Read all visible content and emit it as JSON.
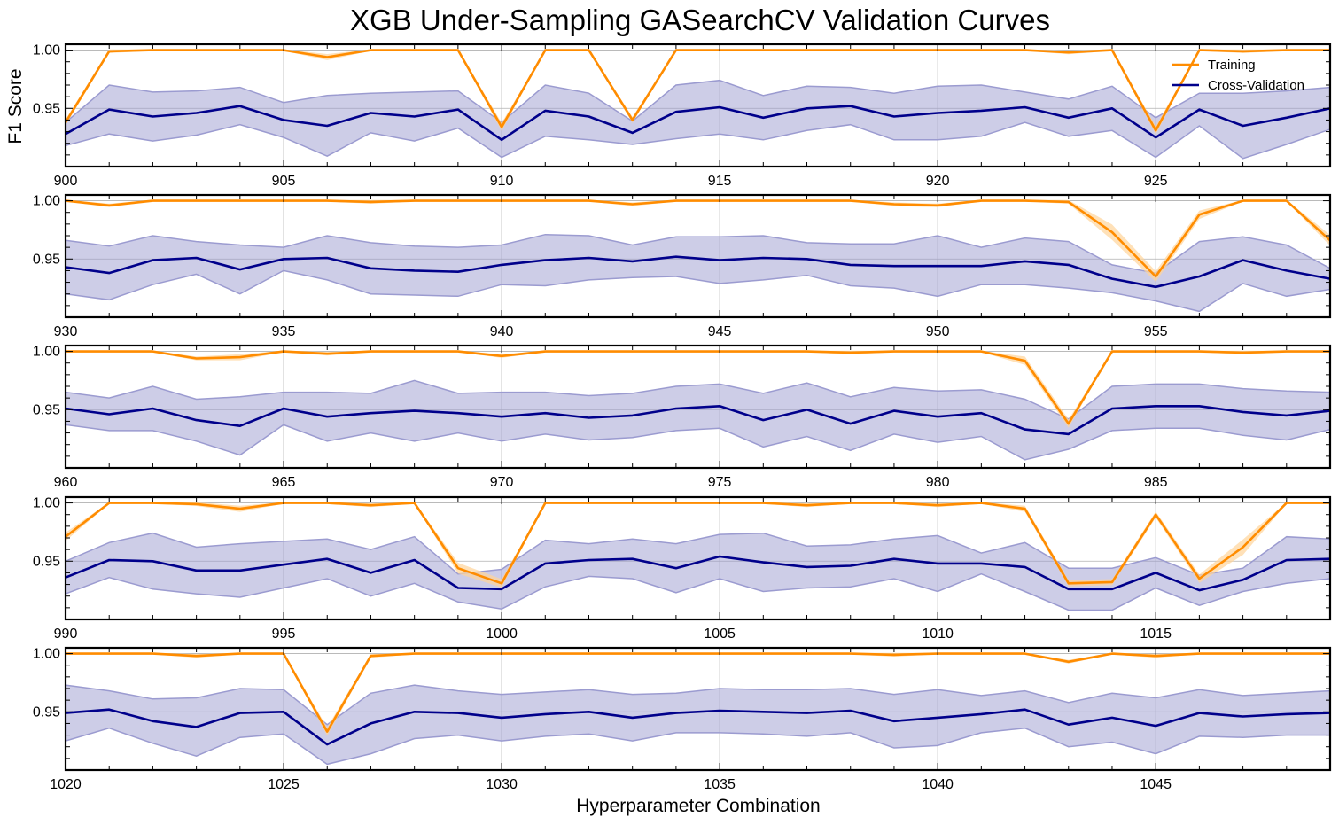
{
  "chart_data": {
    "type": "line",
    "title": "XGB Under-Sampling GASearchCV Validation Curves",
    "xlabel": "Hyperparameter Combination",
    "ylabel": "F1 Score",
    "ylim": [
      0.9,
      1.005
    ],
    "yticks": [
      "0.95",
      "1.00"
    ],
    "grid": true,
    "legend": {
      "placement": "top-right",
      "entries": [
        "Training",
        "Cross-Validation"
      ]
    },
    "colors": {
      "training": "#ff8c00",
      "cv": "#00008b",
      "cv_band": "#9b9bd0",
      "train_band": "#ffd49a"
    },
    "panels": [
      {
        "x_start": 900,
        "x_end": 929,
        "xticks": [
          "900",
          "905",
          "910",
          "915",
          "920",
          "925"
        ],
        "train_mean": [
          0.938,
          0.999,
          1.0,
          1.0,
          1.0,
          1.0,
          0.994,
          1.0,
          1.0,
          1.0,
          0.934,
          1.0,
          1.0,
          0.94,
          1.0,
          1.0,
          1.0,
          1.0,
          1.0,
          1.0,
          1.0,
          1.0,
          1.0,
          0.998,
          1.0,
          0.931,
          1.0,
          0.999,
          1.0,
          1.0
        ],
        "train_std": [
          0.002,
          0.001,
          0.0,
          0.0,
          0.0,
          0.0,
          0.002,
          0.0,
          0.0,
          0.0,
          0.003,
          0.0,
          0.0,
          0.002,
          0.0,
          0.0,
          0.0,
          0.0,
          0.0,
          0.0,
          0.0,
          0.0,
          0.0,
          0.001,
          0.0,
          0.003,
          0.0,
          0.001,
          0.0,
          0.0
        ],
        "cv_mean": [
          0.928,
          0.949,
          0.943,
          0.946,
          0.952,
          0.94,
          0.935,
          0.946,
          0.943,
          0.949,
          0.923,
          0.948,
          0.943,
          0.929,
          0.947,
          0.951,
          0.942,
          0.95,
          0.952,
          0.943,
          0.946,
          0.948,
          0.951,
          0.942,
          0.95,
          0.925,
          0.949,
          0.935,
          0.942,
          0.95
        ],
        "cv_std": [
          0.01,
          0.021,
          0.021,
          0.019,
          0.016,
          0.015,
          0.026,
          0.017,
          0.021,
          0.016,
          0.015,
          0.022,
          0.02,
          0.01,
          0.023,
          0.023,
          0.019,
          0.019,
          0.016,
          0.02,
          0.023,
          0.022,
          0.013,
          0.016,
          0.019,
          0.017,
          0.014,
          0.028,
          0.023,
          0.018
        ]
      },
      {
        "x_start": 930,
        "x_end": 959,
        "xticks": [
          "930",
          "935",
          "940",
          "945",
          "950",
          "955"
        ],
        "train_mean": [
          1.0,
          0.996,
          1.0,
          1.0,
          1.0,
          1.0,
          1.0,
          0.999,
          1.0,
          1.0,
          1.0,
          1.0,
          1.0,
          0.997,
          1.0,
          1.0,
          1.0,
          1.0,
          1.0,
          0.997,
          0.996,
          1.0,
          1.0,
          0.999,
          0.973,
          0.935,
          0.988,
          1.0,
          1.0,
          0.966
        ],
        "train_std": [
          0.0,
          0.001,
          0.0,
          0.0,
          0.0,
          0.0,
          0.0,
          0.001,
          0.0,
          0.0,
          0.0,
          0.0,
          0.0,
          0.001,
          0.0,
          0.0,
          0.0,
          0.0,
          0.0,
          0.001,
          0.001,
          0.0,
          0.0,
          0.001,
          0.006,
          0.004,
          0.003,
          0.0,
          0.0,
          0.004
        ],
        "cv_mean": [
          0.943,
          0.938,
          0.949,
          0.951,
          0.941,
          0.95,
          0.951,
          0.942,
          0.94,
          0.939,
          0.945,
          0.949,
          0.951,
          0.948,
          0.952,
          0.949,
          0.951,
          0.95,
          0.945,
          0.944,
          0.944,
          0.944,
          0.948,
          0.945,
          0.933,
          0.926,
          0.935,
          0.949,
          0.94,
          0.933
        ],
        "cv_std": [
          0.023,
          0.023,
          0.021,
          0.014,
          0.021,
          0.01,
          0.019,
          0.022,
          0.021,
          0.021,
          0.017,
          0.022,
          0.019,
          0.014,
          0.017,
          0.02,
          0.019,
          0.014,
          0.018,
          0.019,
          0.026,
          0.016,
          0.02,
          0.02,
          0.012,
          0.012,
          0.03,
          0.02,
          0.022,
          0.009
        ]
      },
      {
        "x_start": 960,
        "x_end": 989,
        "xticks": [
          "960",
          "965",
          "970",
          "975",
          "980",
          "985"
        ],
        "train_mean": [
          1.0,
          1.0,
          1.0,
          0.994,
          0.995,
          1.0,
          0.998,
          1.0,
          1.0,
          1.0,
          0.996,
          1.0,
          1.0,
          1.0,
          1.0,
          1.0,
          1.0,
          1.0,
          0.999,
          1.0,
          1.0,
          1.0,
          0.992,
          0.938,
          1.0,
          1.0,
          1.0,
          0.999,
          1.0,
          1.0
        ],
        "train_std": [
          0.0,
          0.0,
          0.0,
          0.001,
          0.002,
          0.0,
          0.001,
          0.0,
          0.0,
          0.0,
          0.001,
          0.0,
          0.0,
          0.0,
          0.0,
          0.0,
          0.0,
          0.0,
          0.001,
          0.0,
          0.0,
          0.0,
          0.003,
          0.003,
          0.0,
          0.0,
          0.0,
          0.001,
          0.0,
          0.0
        ],
        "cv_mean": [
          0.951,
          0.946,
          0.951,
          0.941,
          0.936,
          0.951,
          0.944,
          0.947,
          0.949,
          0.947,
          0.944,
          0.947,
          0.943,
          0.945,
          0.951,
          0.953,
          0.941,
          0.95,
          0.938,
          0.949,
          0.944,
          0.947,
          0.933,
          0.929,
          0.951,
          0.953,
          0.953,
          0.948,
          0.945,
          0.949
        ],
        "cv_std": [
          0.014,
          0.014,
          0.019,
          0.018,
          0.025,
          0.014,
          0.021,
          0.017,
          0.026,
          0.017,
          0.021,
          0.018,
          0.019,
          0.019,
          0.019,
          0.019,
          0.023,
          0.023,
          0.023,
          0.02,
          0.022,
          0.02,
          0.026,
          0.013,
          0.019,
          0.019,
          0.019,
          0.02,
          0.021,
          0.016
        ]
      },
      {
        "x_start": 990,
        "x_end": 1019,
        "xticks": [
          "990",
          "995",
          "1000",
          "1005",
          "1010",
          "1015"
        ],
        "train_mean": [
          0.971,
          1.0,
          1.0,
          0.999,
          0.995,
          1.0,
          1.0,
          0.998,
          1.0,
          0.944,
          0.931,
          1.0,
          1.0,
          1.0,
          1.0,
          1.0,
          1.0,
          0.998,
          1.0,
          1.0,
          0.998,
          1.0,
          0.995,
          0.931,
          0.932,
          0.99,
          0.935,
          0.962,
          1.0,
          1.0
        ],
        "train_std": [
          0.003,
          0.0,
          0.0,
          0.001,
          0.002,
          0.0,
          0.0,
          0.001,
          0.0,
          0.004,
          0.003,
          0.0,
          0.0,
          0.0,
          0.0,
          0.0,
          0.0,
          0.001,
          0.0,
          0.0,
          0.001,
          0.0,
          0.002,
          0.002,
          0.002,
          0.002,
          0.003,
          0.006,
          0.0,
          0.0
        ],
        "cv_mean": [
          0.936,
          0.951,
          0.95,
          0.942,
          0.942,
          0.947,
          0.952,
          0.94,
          0.951,
          0.927,
          0.926,
          0.948,
          0.951,
          0.952,
          0.944,
          0.954,
          0.949,
          0.945,
          0.946,
          0.952,
          0.948,
          0.948,
          0.945,
          0.926,
          0.926,
          0.94,
          0.925,
          0.934,
          0.951,
          0.952
        ],
        "cv_std": [
          0.014,
          0.015,
          0.024,
          0.02,
          0.023,
          0.02,
          0.017,
          0.02,
          0.02,
          0.012,
          0.017,
          0.02,
          0.014,
          0.017,
          0.021,
          0.019,
          0.025,
          0.018,
          0.018,
          0.017,
          0.024,
          0.009,
          0.021,
          0.018,
          0.018,
          0.013,
          0.013,
          0.01,
          0.02,
          0.017
        ]
      },
      {
        "x_start": 1020,
        "x_end": 1049,
        "xticks": [
          "1020",
          "1025",
          "1030",
          "1035",
          "1040",
          "1045"
        ],
        "train_mean": [
          1.0,
          1.0,
          1.0,
          0.998,
          1.0,
          1.0,
          0.933,
          0.998,
          1.0,
          1.0,
          1.0,
          1.0,
          1.0,
          1.0,
          1.0,
          1.0,
          1.0,
          1.0,
          1.0,
          0.999,
          1.0,
          1.0,
          1.0,
          0.993,
          1.0,
          0.998,
          1.0,
          1.0,
          1.0,
          1.0
        ],
        "train_std": [
          0.0,
          0.0,
          0.0,
          0.001,
          0.0,
          0.0,
          0.003,
          0.001,
          0.0,
          0.0,
          0.0,
          0.0,
          0.0,
          0.0,
          0.0,
          0.0,
          0.0,
          0.0,
          0.0,
          0.001,
          0.0,
          0.0,
          0.0,
          0.001,
          0.0,
          0.001,
          0.0,
          0.0,
          0.0,
          0.0
        ],
        "cv_mean": [
          0.949,
          0.952,
          0.942,
          0.937,
          0.949,
          0.95,
          0.922,
          0.94,
          0.95,
          0.949,
          0.945,
          0.948,
          0.95,
          0.945,
          0.949,
          0.951,
          0.95,
          0.949,
          0.951,
          0.942,
          0.945,
          0.948,
          0.952,
          0.939,
          0.945,
          0.938,
          0.949,
          0.946,
          0.948,
          0.949
        ],
        "cv_std": [
          0.024,
          0.016,
          0.019,
          0.025,
          0.021,
          0.019,
          0.017,
          0.026,
          0.023,
          0.019,
          0.02,
          0.019,
          0.019,
          0.02,
          0.017,
          0.019,
          0.019,
          0.02,
          0.019,
          0.023,
          0.024,
          0.016,
          0.016,
          0.019,
          0.021,
          0.024,
          0.02,
          0.018,
          0.018,
          0.019
        ]
      }
    ]
  }
}
